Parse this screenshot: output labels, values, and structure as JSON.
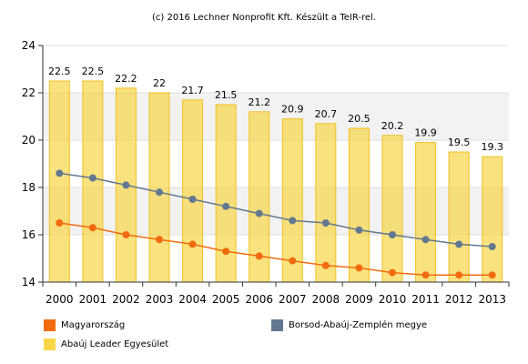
{
  "credit": "(c) 2016 Lechner Nonprofit Kft. Készült a TeIR-rel.",
  "chart_data": {
    "type": "bar",
    "title": "",
    "xlabel": "",
    "ylabel": "",
    "ylim": [
      14,
      24
    ],
    "yticks": [
      14,
      16,
      18,
      20,
      22,
      24
    ],
    "grid": "horizontal",
    "legend_placement": "bottom",
    "categories": [
      "2000",
      "2001",
      "2002",
      "2003",
      "2004",
      "2005",
      "2006",
      "2007",
      "2008",
      "2009",
      "2010",
      "2011",
      "2012",
      "2013"
    ],
    "series": [
      {
        "name": "Abaúj Leader Egyesület",
        "kind": "bar",
        "color": "#f8d547",
        "values": [
          22.5,
          22.5,
          22.2,
          22,
          21.7,
          21.5,
          21.2,
          20.9,
          20.7,
          20.5,
          20.2,
          19.9,
          19.5,
          19.3
        ],
        "labels": [
          "22.5",
          "22.5",
          "22.2",
          "22",
          "21.7",
          "21.5",
          "21.2",
          "20.9",
          "20.7",
          "20.5",
          "20.2",
          "19.9",
          "19.5",
          "19.3"
        ]
      },
      {
        "name": "Borsod-Abaúj-Zemplén megye",
        "kind": "line",
        "color": "#627890",
        "values": [
          18.6,
          18.4,
          18.1,
          17.8,
          17.5,
          17.2,
          16.9,
          16.6,
          16.5,
          16.2,
          16.0,
          15.8,
          15.6,
          15.5
        ]
      },
      {
        "name": "Magyarország",
        "kind": "line",
        "color": "#f26b0e",
        "values": [
          16.5,
          16.3,
          16.0,
          15.8,
          15.6,
          15.3,
          15.1,
          14.9,
          14.7,
          14.6,
          14.4,
          14.3,
          14.3,
          14.3
        ]
      }
    ]
  },
  "legend": [
    {
      "label": "Magyarország",
      "color": "#f26b0e"
    },
    {
      "label": "Borsod-Abaúj-Zemplén megye",
      "color": "#627890"
    },
    {
      "label": "Abaúj Leader Egyesület",
      "color": "#f8d547"
    }
  ]
}
